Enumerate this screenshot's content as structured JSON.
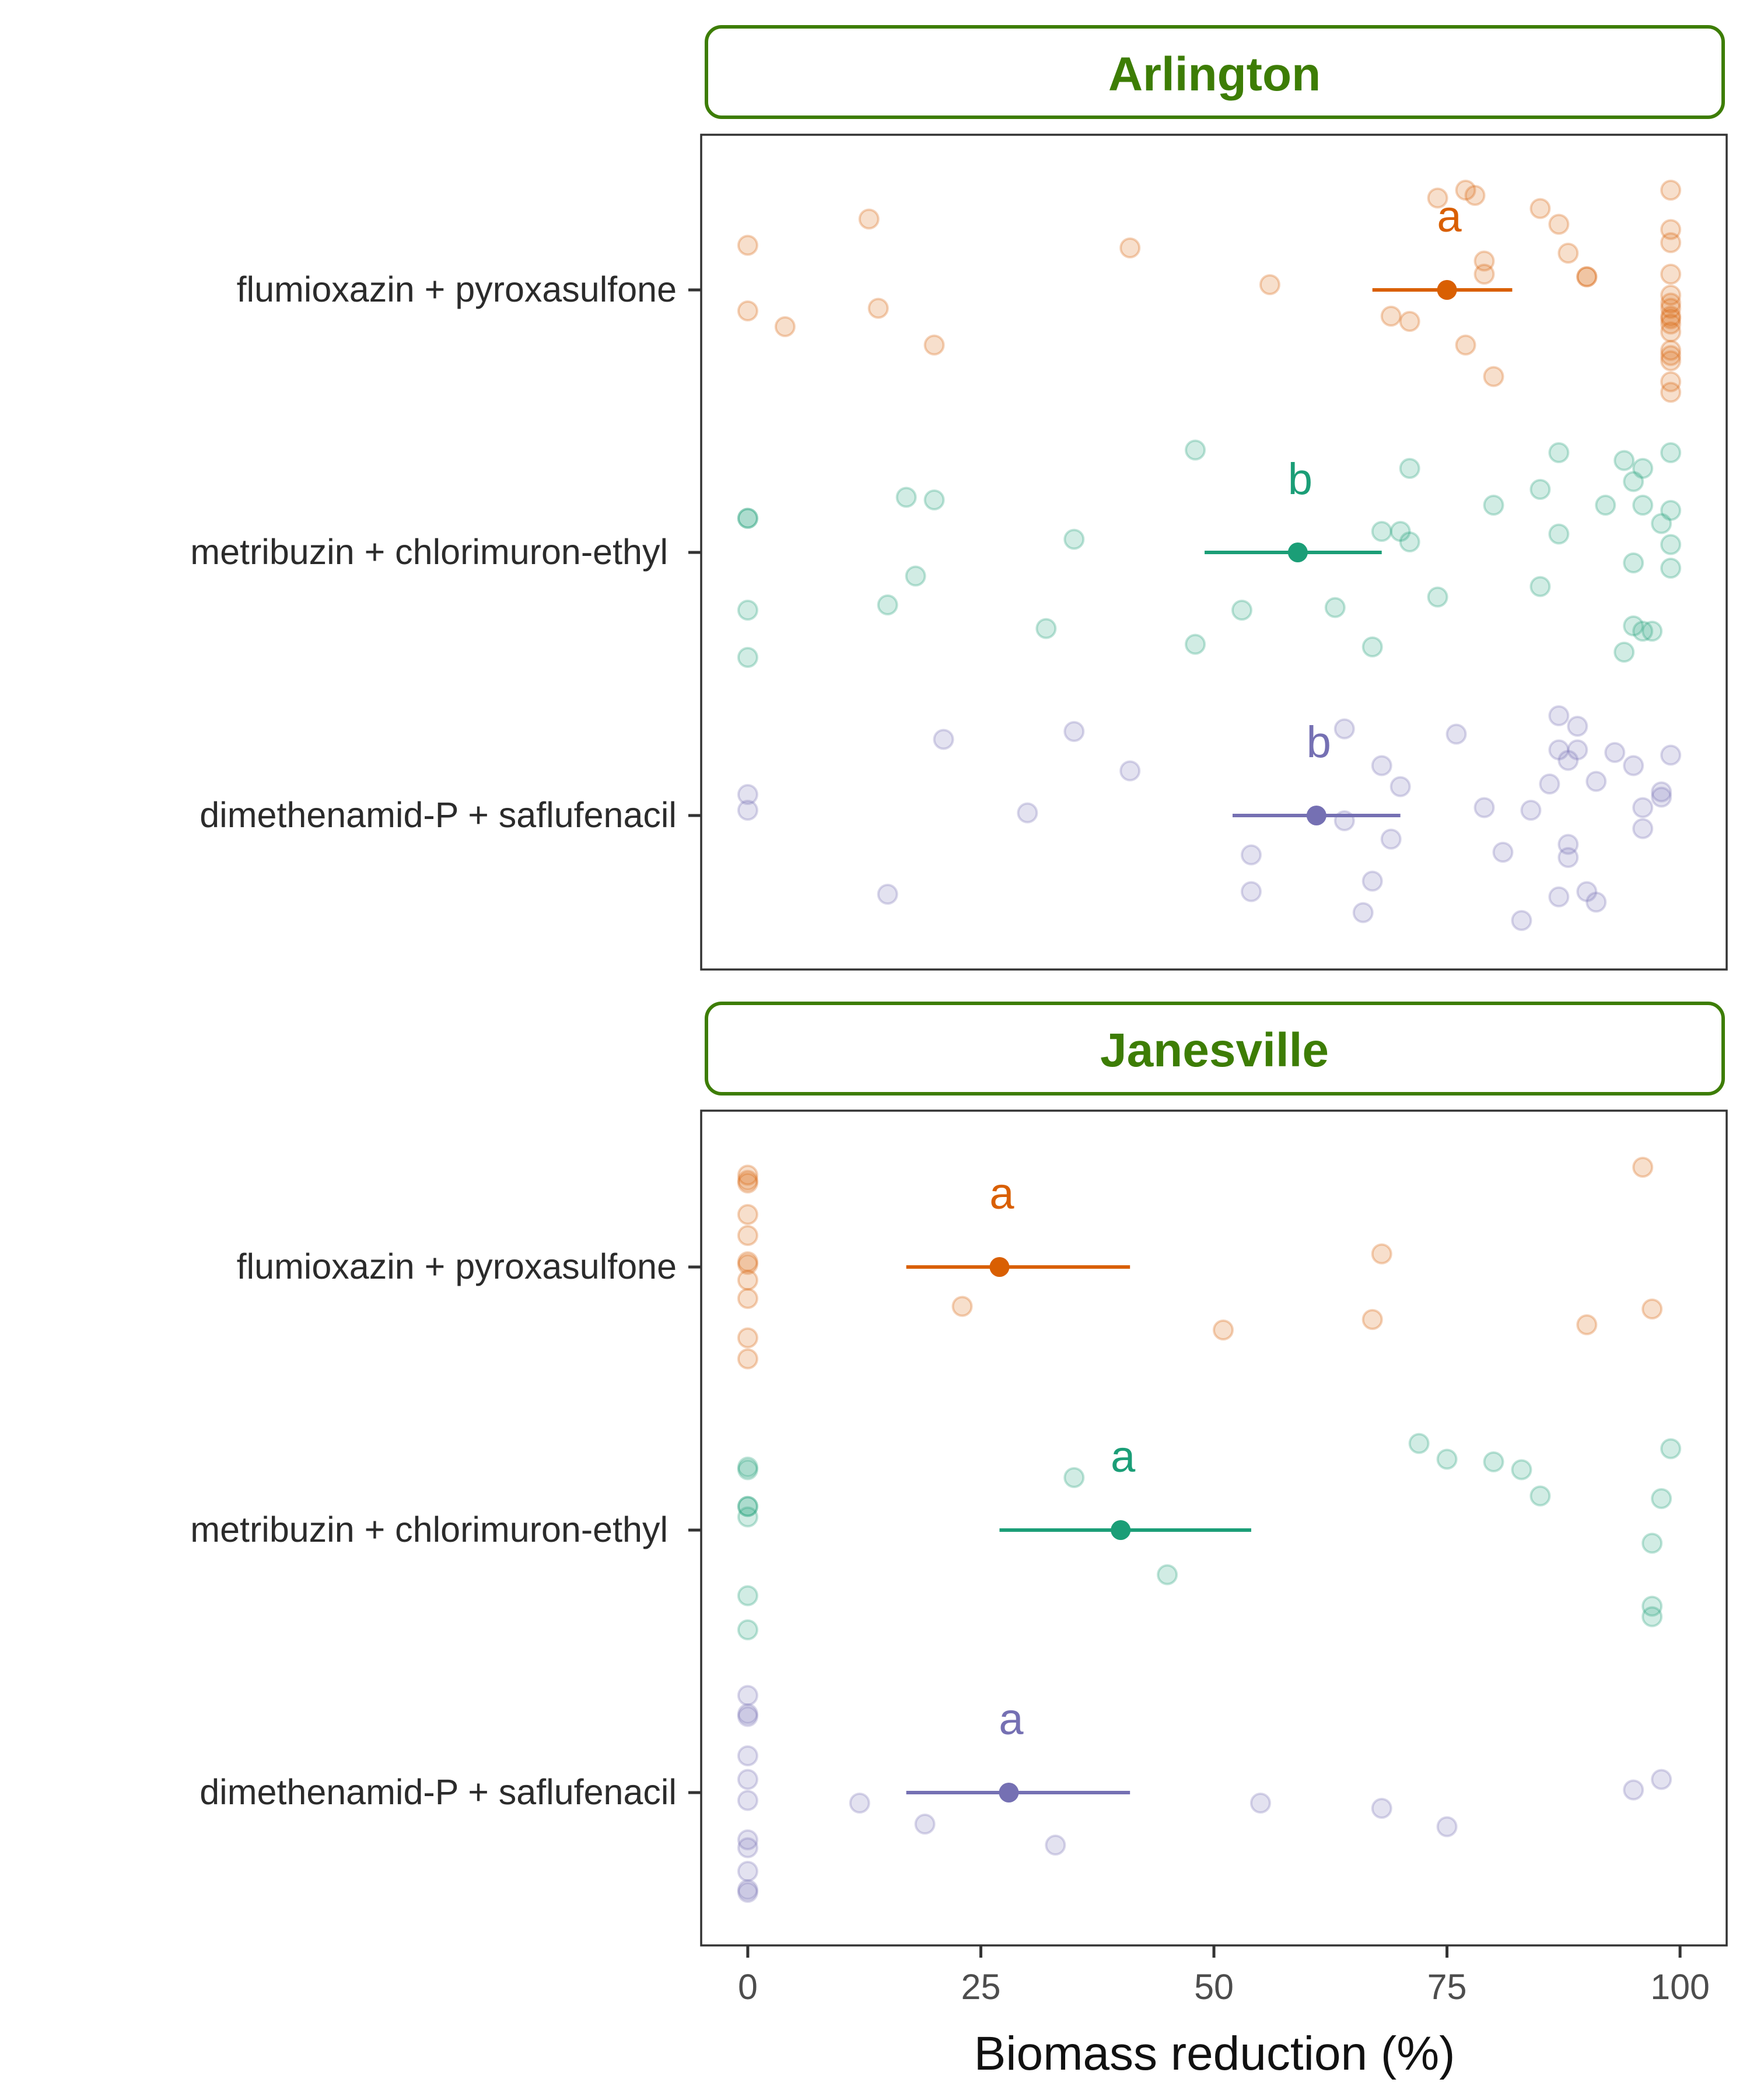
{
  "chart_data": {
    "type": "scatter",
    "xlabel": "Biomass reduction (%)",
    "xlim": [
      -5,
      105
    ],
    "xticks": [
      0,
      25,
      50,
      75,
      100
    ],
    "categories": [
      "flumioxazin + pyroxasulfone",
      "metribuzin + chlorimuron-ethyl",
      "dimethenamid-P + saflufenacil"
    ],
    "colors": {
      "flumioxazin + pyroxasulfone": "#d95f02",
      "metribuzin + chlorimuron-ethyl": "#1b9e77",
      "dimethenamid-P + saflufenacil": "#7570b3"
    },
    "panels": [
      {
        "title": "Arlington",
        "groups": [
          {
            "category": "flumioxazin + pyroxasulfone",
            "mean": 75,
            "ci": [
              67,
              82
            ],
            "letter": "a",
            "points": [
              [
                0,
                0.17
              ],
              [
                0,
                -0.08
              ],
              [
                4,
                -0.14
              ],
              [
                13,
                0.27
              ],
              [
                14,
                -0.07
              ],
              [
                20,
                -0.21
              ],
              [
                41,
                0.16
              ],
              [
                56,
                0.02
              ],
              [
                69,
                -0.1
              ],
              [
                71,
                -0.12
              ],
              [
                74,
                0.35
              ],
              [
                77,
                0.38
              ],
              [
                77,
                -0.21
              ],
              [
                78,
                0.36
              ],
              [
                79,
                0.11
              ],
              [
                79,
                0.06
              ],
              [
                80,
                -0.33
              ],
              [
                85,
                0.31
              ],
              [
                87,
                0.25
              ],
              [
                88,
                0.14
              ],
              [
                90,
                0.05
              ],
              [
                90,
                0.05
              ],
              [
                99,
                0.38
              ],
              [
                99,
                0.23
              ],
              [
                99,
                0.18
              ],
              [
                99,
                0.06
              ],
              [
                99,
                -0.02
              ],
              [
                99,
                -0.07
              ],
              [
                99,
                -0.1
              ],
              [
                99,
                -0.13
              ],
              [
                99,
                -0.16
              ],
              [
                99,
                -0.23
              ],
              [
                99,
                -0.25
              ],
              [
                99,
                -0.27
              ],
              [
                99,
                -0.35
              ],
              [
                99,
                -0.39
              ],
              [
                99,
                -0.05
              ],
              [
                99,
                -0.11
              ]
            ]
          },
          {
            "category": "metribuzin + chlorimuron-ethyl",
            "mean": 59,
            "ci": [
              49,
              68
            ],
            "letter": "b",
            "points": [
              [
                0,
                0.13
              ],
              [
                0,
                0.13
              ],
              [
                0,
                -0.22
              ],
              [
                0,
                -0.4
              ],
              [
                15,
                -0.2
              ],
              [
                17,
                0.21
              ],
              [
                18,
                -0.09
              ],
              [
                20,
                0.2
              ],
              [
                32,
                -0.29
              ],
              [
                35,
                0.05
              ],
              [
                48,
                0.39
              ],
              [
                48,
                -0.35
              ],
              [
                53,
                -0.22
              ],
              [
                63,
                -0.21
              ],
              [
                67,
                -0.36
              ],
              [
                68,
                0.08
              ],
              [
                70,
                0.08
              ],
              [
                71,
                0.32
              ],
              [
                71,
                0.04
              ],
              [
                74,
                -0.17
              ],
              [
                80,
                0.18
              ],
              [
                85,
                0.24
              ],
              [
                85,
                -0.13
              ],
              [
                87,
                0.38
              ],
              [
                87,
                0.07
              ],
              [
                92,
                0.18
              ],
              [
                94,
                0.35
              ],
              [
                95,
                0.27
              ],
              [
                95,
                -0.28
              ],
              [
                95,
                -0.04
              ],
              [
                96,
                -0.3
              ],
              [
                96,
                0.32
              ],
              [
                96,
                0.18
              ],
              [
                97,
                -0.3
              ],
              [
                98,
                0.11
              ],
              [
                99,
                0.03
              ],
              [
                99,
                0.38
              ],
              [
                99,
                0.16
              ],
              [
                99,
                -0.06
              ],
              [
                94,
                -0.38
              ]
            ]
          },
          {
            "category": "dimethenamid-P + saflufenacil",
            "mean": 61,
            "ci": [
              52,
              70
            ],
            "letter": "b",
            "points": [
              [
                0,
                0.08
              ],
              [
                0,
                0.02
              ],
              [
                15,
                -0.3
              ],
              [
                21,
                0.29
              ],
              [
                30,
                0.01
              ],
              [
                35,
                0.32
              ],
              [
                41,
                0.17
              ],
              [
                54,
                -0.15
              ],
              [
                54,
                -0.29
              ],
              [
                64,
                0.33
              ],
              [
                64,
                -0.02
              ],
              [
                66,
                -0.37
              ],
              [
                67,
                -0.25
              ],
              [
                68,
                0.19
              ],
              [
                69,
                -0.09
              ],
              [
                70,
                0.11
              ],
              [
                76,
                0.31
              ],
              [
                79,
                0.03
              ],
              [
                81,
                -0.14
              ],
              [
                83,
                -0.4
              ],
              [
                84,
                0.02
              ],
              [
                86,
                0.12
              ],
              [
                87,
                0.25
              ],
              [
                87,
                0.38
              ],
              [
                87,
                -0.31
              ],
              [
                88,
                -0.11
              ],
              [
                88,
                0.21
              ],
              [
                88,
                -0.16
              ],
              [
                89,
                0.34
              ],
              [
                89,
                0.25
              ],
              [
                90,
                -0.29
              ],
              [
                91,
                0.13
              ],
              [
                91,
                -0.33
              ],
              [
                93,
                0.24
              ],
              [
                95,
                0.19
              ],
              [
                96,
                0.03
              ],
              [
                96,
                -0.05
              ],
              [
                98,
                0.09
              ],
              [
                98,
                0.07
              ],
              [
                99,
                0.23
              ]
            ]
          }
        ]
      },
      {
        "title": "Janesville",
        "groups": [
          {
            "category": "flumioxazin + pyroxasulfone",
            "mean": 27,
            "ci": [
              17,
              41
            ],
            "letter": "a",
            "points": [
              [
                0,
                0.35
              ],
              [
                0,
                0.33
              ],
              [
                0,
                0.2
              ],
              [
                0,
                0.12
              ],
              [
                0,
                0.01
              ],
              [
                0,
                -0.05
              ],
              [
                0,
                -0.12
              ],
              [
                0,
                -0.27
              ],
              [
                0,
                -0.35
              ],
              [
                0,
                0.32
              ],
              [
                0,
                0.02
              ],
              [
                23,
                -0.15
              ],
              [
                51,
                -0.24
              ],
              [
                67,
                -0.2
              ],
              [
                68,
                0.05
              ],
              [
                90,
                -0.22
              ],
              [
                96,
                0.38
              ],
              [
                97,
                -0.16
              ]
            ]
          },
          {
            "category": "metribuzin + chlorimuron-ethyl",
            "mean": 40,
            "ci": [
              27,
              54
            ],
            "letter": "a",
            "points": [
              [
                0,
                0.24
              ],
              [
                0,
                0.23
              ],
              [
                0,
                0.09
              ],
              [
                0,
                0.09
              ],
              [
                0,
                0.05
              ],
              [
                0,
                -0.25
              ],
              [
                0,
                -0.38
              ],
              [
                35,
                0.2
              ],
              [
                45,
                -0.17
              ],
              [
                72,
                0.33
              ],
              [
                75,
                0.27
              ],
              [
                80,
                0.26
              ],
              [
                83,
                0.23
              ],
              [
                85,
                0.13
              ],
              [
                97,
                -0.29
              ],
              [
                97,
                -0.33
              ],
              [
                97,
                -0.05
              ],
              [
                98,
                0.12
              ],
              [
                99,
                0.31
              ]
            ]
          },
          {
            "category": "dimethenamid-P + saflufenacil",
            "mean": 28,
            "ci": [
              17,
              41
            ],
            "letter": "a",
            "points": [
              [
                0,
                0.37
              ],
              [
                0,
                0.3
              ],
              [
                0,
                0.29
              ],
              [
                0,
                0.14
              ],
              [
                0,
                0.05
              ],
              [
                0,
                -0.03
              ],
              [
                0,
                -0.18
              ],
              [
                0,
                -0.21
              ],
              [
                0,
                -0.3
              ],
              [
                0,
                -0.37
              ],
              [
                0,
                -0.38
              ],
              [
                12,
                -0.04
              ],
              [
                19,
                -0.12
              ],
              [
                33,
                -0.2
              ],
              [
                55,
                -0.04
              ],
              [
                68,
                -0.06
              ],
              [
                75,
                -0.13
              ],
              [
                95,
                0.01
              ],
              [
                98,
                0.05
              ]
            ]
          }
        ]
      }
    ]
  }
}
